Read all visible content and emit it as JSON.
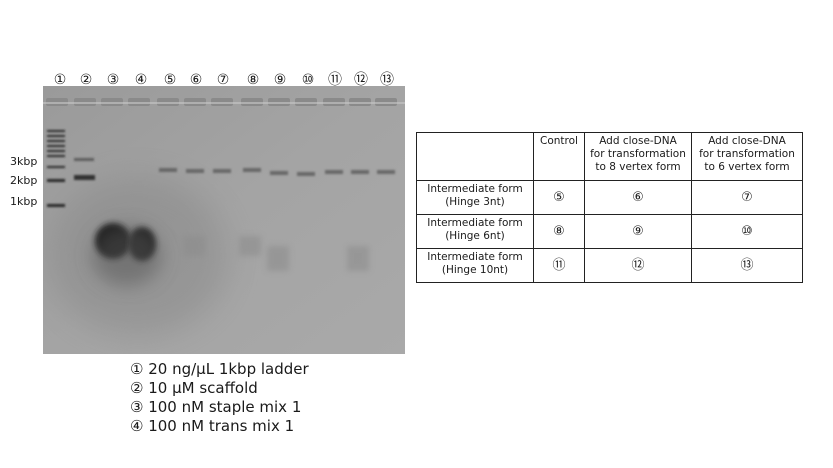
{
  "lane_labels": [
    "①",
    "②",
    "③",
    "④",
    "⑤",
    "⑥",
    "⑦",
    "⑧",
    "⑨",
    "⑩",
    "⑪",
    "⑫",
    "⑬"
  ],
  "size_markers": [
    "3kbp",
    "2kbp",
    "1kbp"
  ],
  "legend": [
    "① 20 ng/μL 1kbp ladder",
    "② 10 μM scaffold",
    "③ 100 nM staple mix 1",
    "④ 100 nM trans mix 1"
  ],
  "table": {
    "headers": [
      "",
      "Control",
      "Add close-DNA for transformation to 8 vertex form",
      "Add close-DNA for transformation to 6 vertex form"
    ],
    "header_lines": [
      [
        ""
      ],
      [
        "Control"
      ],
      [
        "Add close-DNA",
        "for transformation",
        "to 8 vertex form"
      ],
      [
        "Add close-DNA",
        "for transformation",
        "to 6 vertex form"
      ]
    ],
    "rows": [
      {
        "label_lines": [
          "Intermediate form",
          "(Hinge 3nt)"
        ],
        "cells": [
          "⑤",
          "⑥",
          "⑦"
        ]
      },
      {
        "label_lines": [
          "Intermediate form",
          "(Hinge 6nt)"
        ],
        "cells": [
          "⑧",
          "⑨",
          "⑩"
        ]
      },
      {
        "label_lines": [
          "Intermediate form",
          "(Hinge 10nt)"
        ],
        "cells": [
          "⑪",
          "⑫",
          "⑬"
        ]
      }
    ]
  }
}
